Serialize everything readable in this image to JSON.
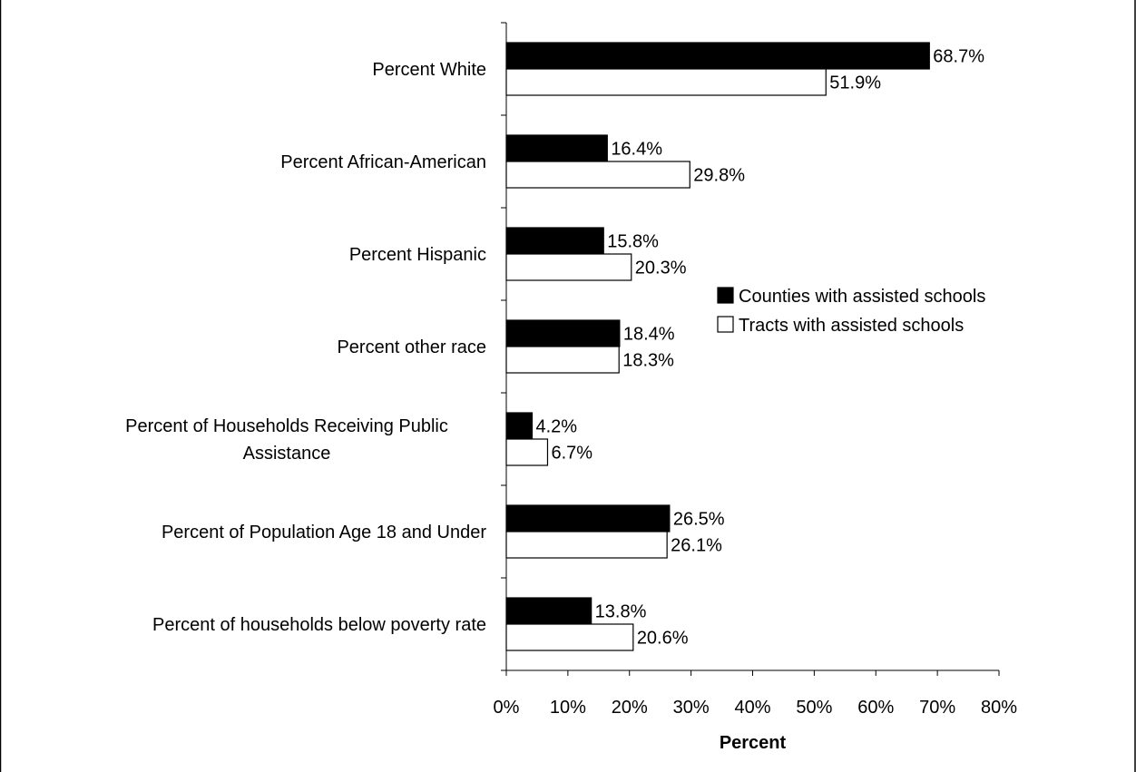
{
  "chart_data": {
    "type": "bar",
    "orientation": "horizontal",
    "categories": [
      [
        "Percent White"
      ],
      [
        "Percent African-American"
      ],
      [
        "Percent Hispanic"
      ],
      [
        "Percent other race"
      ],
      [
        "Percent of Households Receiving Public",
        "Assistance"
      ],
      [
        "Percent of Population Age 18 and Under"
      ],
      [
        "Percent of households below poverty rate"
      ]
    ],
    "series": [
      {
        "name": "Counties with assisted schools",
        "color": "#000000",
        "values": [
          68.7,
          16.4,
          15.8,
          18.4,
          4.2,
          26.5,
          13.8
        ],
        "labels": [
          "68.7%",
          "16.4%",
          "15.8%",
          "18.4%",
          "4.2%",
          "26.5%",
          "13.8%"
        ]
      },
      {
        "name": "Tracts with assisted schools",
        "color": "#ffffff",
        "values": [
          51.9,
          29.8,
          20.3,
          18.3,
          6.7,
          26.1,
          20.6
        ],
        "labels": [
          "51.9%",
          "29.8%",
          "20.3%",
          "18.3%",
          "6.7%",
          "26.1%",
          "20.6%"
        ]
      }
    ],
    "xlim": [
      0,
      80
    ],
    "xticks": [
      0,
      10,
      20,
      30,
      40,
      50,
      60,
      70,
      80
    ],
    "xtick_labels": [
      "0%",
      "10%",
      "20%",
      "30%",
      "40%",
      "50%",
      "60%",
      "70%",
      "80%"
    ],
    "xlabel": "Percent",
    "ylabel": "",
    "title": "",
    "grid": false,
    "legend_position": "right"
  }
}
